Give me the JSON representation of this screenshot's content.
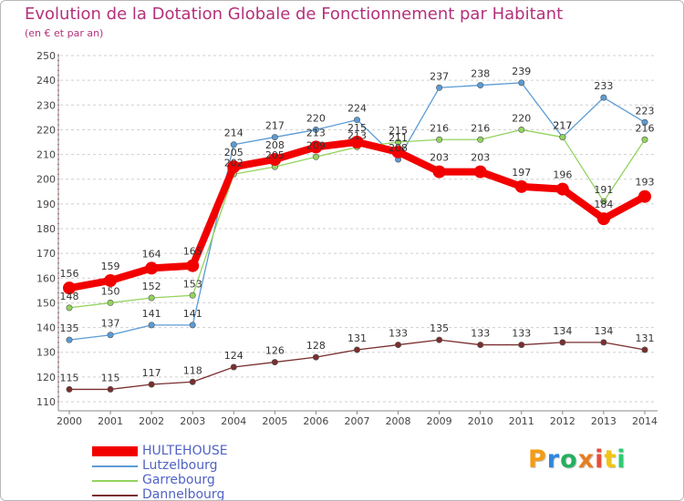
{
  "title": "Evolution de la Dotation Globale de Fonctionnement par Habitant",
  "subtitle": "(en € et par an)",
  "chart_data": {
    "type": "line",
    "title": "Evolution de la Dotation Globale de Fonctionnement par Habitant",
    "subtitle": "(en € et par an)",
    "xlabel": "",
    "ylabel": "",
    "x": [
      "2000",
      "2001",
      "2002",
      "2003",
      "2004",
      "2005",
      "2006",
      "2007",
      "2008",
      "2009",
      "2010",
      "2011",
      "2012",
      "2013",
      "2014"
    ],
    "ylim": [
      110,
      250
    ],
    "yticks": [
      110,
      120,
      130,
      140,
      150,
      160,
      170,
      180,
      190,
      200,
      210,
      220,
      230,
      240,
      250
    ],
    "grid": "horizontal dashed",
    "legend_position": "bottom-left",
    "series": [
      {
        "name": "Lutzelbourg",
        "color": "#5b9bd5",
        "values": [
          135,
          137,
          141,
          141,
          214,
          217,
          220,
          224,
          208,
          237,
          238,
          239,
          217,
          233,
          223
        ]
      },
      {
        "name": "Garrebourg",
        "color": "#93d35e",
        "values": [
          148,
          150,
          152,
          153,
          202,
          205,
          209,
          213,
          215,
          216,
          216,
          220,
          217,
          191,
          216
        ]
      },
      {
        "name": "Dannelbourg",
        "color": "#7a2e2e",
        "values": [
          115,
          115,
          117,
          118,
          124,
          126,
          128,
          131,
          133,
          135,
          133,
          133,
          134,
          134,
          131
        ]
      },
      {
        "name": "HULTEHOUSE",
        "color": "#f20000",
        "values": [
          156,
          159,
          164,
          165,
          205,
          208,
          213,
          215,
          211,
          203,
          203,
          197,
          196,
          184,
          193
        ]
      }
    ],
    "legend": [
      "HULTEHOUSE",
      "Lutzelbourg",
      "Garrebourg",
      "Dannelbourg"
    ]
  },
  "logo": {
    "letters": [
      "P",
      "r",
      "o",
      "x",
      "i",
      "t",
      "i"
    ],
    "colors": [
      "#f39c12",
      "#2e86de",
      "#27ae60",
      "#e67e22",
      "#e74c3c",
      "#f1c40f",
      "#2ecc71"
    ]
  }
}
